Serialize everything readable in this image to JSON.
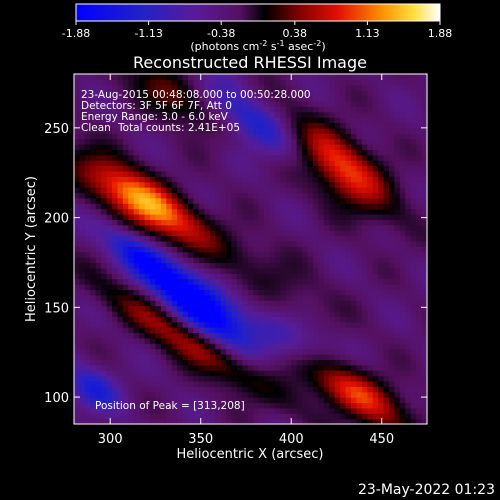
{
  "chart_data": {
    "type": "heatmap",
    "title": "Reconstructed RHESSI Image",
    "xlabel": "Heliocentric X (arcsec)",
    "ylabel": "Heliocentric Y (arcsec)",
    "xlim": [
      280,
      475
    ],
    "ylim": [
      85,
      280
    ],
    "x_ticks": [
      300,
      350,
      400,
      450
    ],
    "y_ticks": [
      100,
      150,
      200,
      250
    ],
    "grid": false,
    "colorbar": {
      "ticks": [
        "-1.88",
        "-1.13",
        "-0.38",
        "0.38",
        "1.13",
        "1.88"
      ],
      "range": [
        -1.88,
        1.88
      ],
      "label_prefix": "(photons cm",
      "label_sup1": "-2",
      "label_mid": " s",
      "label_sup2": "-1",
      "label_mid2": " asec",
      "label_sup3": "-2",
      "label_suffix": ")"
    },
    "annotations": {
      "time_range": "23-Aug-2015 00:48:08.000 to 00:50:28.000",
      "detectors": "Detectors: 3F 5F 6F 7F, Att 0",
      "energy_range": "Energy Range: 3.0 - 6.0 keV",
      "clean_label": "Clean",
      "total_counts": "Total counts: 2.41E+05",
      "peak_position": "Position of Peak = [313,208]"
    },
    "peak": [
      313,
      208
    ],
    "features": [
      {
        "x": 318,
        "y": 209,
        "amp": 1.95,
        "sx": 28,
        "sy": 9,
        "angle": -34
      },
      {
        "x": 427,
        "y": 228,
        "amp": 1.5,
        "sx": 24,
        "sy": 11,
        "angle": -40
      },
      {
        "x": 432,
        "y": 105,
        "amp": 1.5,
        "sx": 26,
        "sy": 9,
        "angle": -32
      },
      {
        "x": 345,
        "y": 130,
        "amp": 1.1,
        "sx": 40,
        "sy": 7,
        "angle": -33
      },
      {
        "x": 335,
        "y": 269,
        "amp": 0.9,
        "sx": 22,
        "sy": 8,
        "angle": -35
      },
      {
        "x": 392,
        "y": 168,
        "amp": 0.35,
        "sx": 30,
        "sy": 9,
        "angle": -38
      },
      {
        "x": 350,
        "y": 150,
        "amp": -1.7,
        "sx": 26,
        "sy": 8,
        "angle": -42
      },
      {
        "x": 318,
        "y": 177,
        "amp": -1.0,
        "sx": 20,
        "sy": 6,
        "angle": -40
      },
      {
        "x": 378,
        "y": 253,
        "amp": -0.9,
        "sx": 28,
        "sy": 8,
        "angle": -36
      },
      {
        "x": 408,
        "y": 128,
        "amp": -0.8,
        "sx": 22,
        "sy": 8,
        "angle": -34
      },
      {
        "x": 290,
        "y": 105,
        "amp": -0.8,
        "sx": 12,
        "sy": 8,
        "angle": -30
      }
    ],
    "baseline": -0.55
  },
  "footer": {
    "date": "23-May-2022 01:23"
  }
}
